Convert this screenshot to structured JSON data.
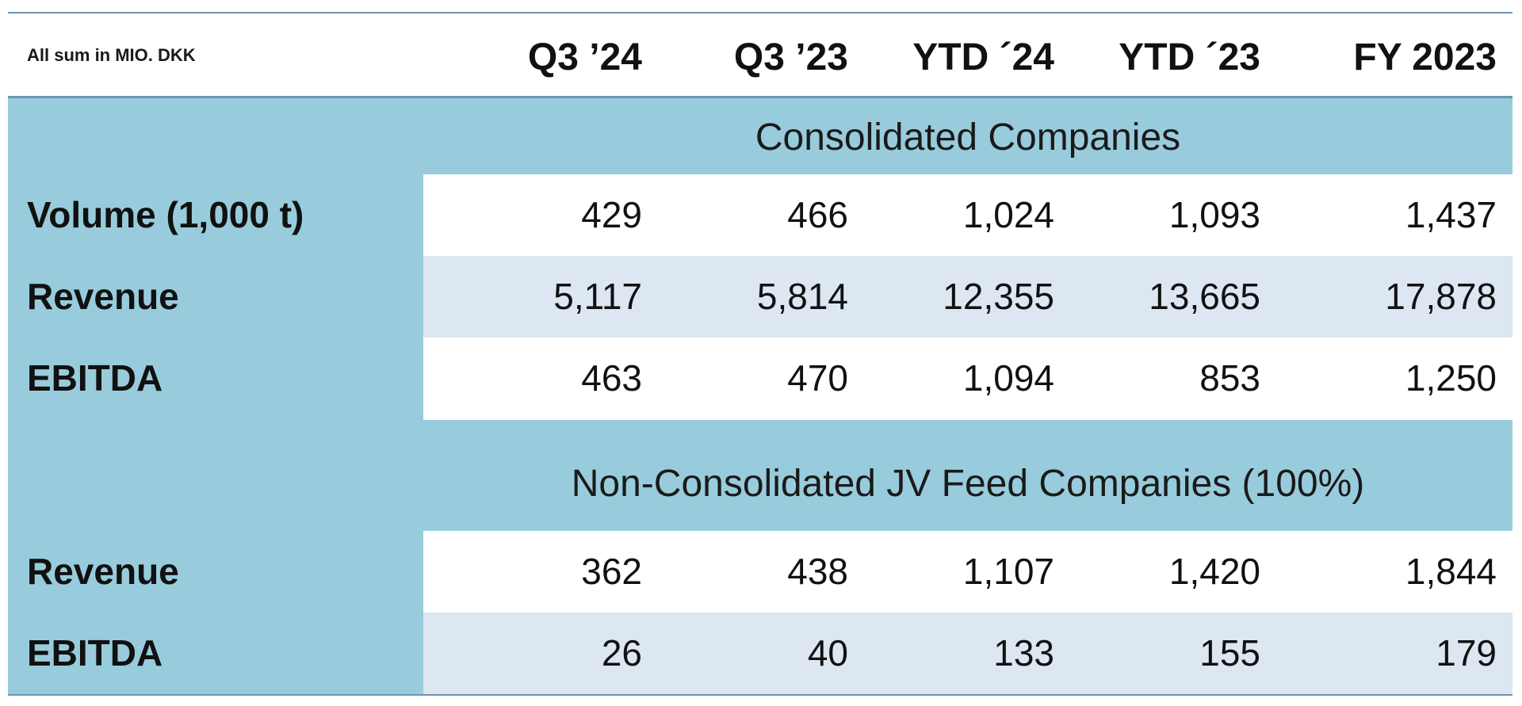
{
  "header": {
    "unit_label": "All sum in MIO. DKK",
    "columns": [
      "Q3 ’24",
      "Q3 ’23",
      "YTD ´24",
      "YTD ´23",
      "FY 2023"
    ]
  },
  "sections": [
    {
      "title": "Consolidated Companies",
      "rows": [
        {
          "label": "Volume (1,000 t)",
          "values": [
            "429",
            "466",
            "1,024",
            "1,093",
            "1,437"
          ]
        },
        {
          "label": "Revenue",
          "values": [
            "5,117",
            "5,814",
            "12,355",
            "13,665",
            "17,878"
          ]
        },
        {
          "label": "EBITDA",
          "values": [
            "463",
            "470",
            "1,094",
            "853",
            "1,250"
          ]
        }
      ]
    },
    {
      "title": "Non-Consolidated JV Feed Companies (100%)",
      "rows": [
        {
          "label": "Revenue",
          "values": [
            "362",
            "438",
            "1,107",
            "1,420",
            "1,844"
          ]
        },
        {
          "label": "EBITDA",
          "values": [
            "26",
            "40",
            "133",
            "155",
            "179"
          ]
        }
      ]
    }
  ],
  "colors": {
    "band": "#98ccdc",
    "row_tint": "#dce7f2",
    "rule": "#6f93b3"
  }
}
